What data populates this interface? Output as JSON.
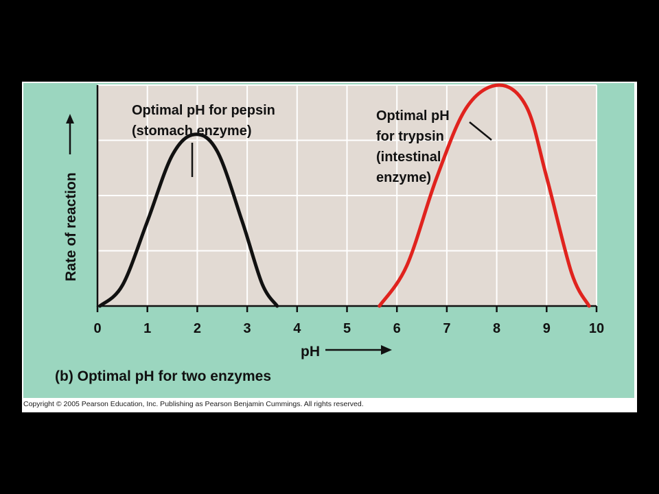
{
  "chart_data": {
    "type": "line",
    "xlabel": "pH",
    "ylabel": "Rate of reaction",
    "caption": "(b) Optimal pH for two enzymes",
    "xlim": [
      0,
      10
    ],
    "ylim": [
      0,
      3
    ],
    "xticks": [
      "0",
      "1",
      "2",
      "3",
      "4",
      "5",
      "6",
      "7",
      "8",
      "9",
      "10"
    ],
    "grid": true,
    "series": [
      {
        "color": "#111111",
        "x": [
          0.05,
          0.5,
          1.0,
          1.5,
          1.95,
          2.4,
          2.9,
          3.3,
          3.6
        ],
        "y": [
          0.0,
          0.28,
          1.15,
          2.05,
          2.33,
          2.1,
          1.15,
          0.3,
          0.0
        ]
      },
      {
        "color": "#e0231e",
        "x": [
          5.65,
          6.2,
          6.8,
          7.4,
          8.05,
          8.6,
          9.0,
          9.5,
          9.85
        ],
        "y": [
          0.0,
          0.55,
          1.75,
          2.7,
          3.0,
          2.7,
          1.75,
          0.45,
          0.0
        ]
      }
    ],
    "annotations": [
      {
        "lines": [
          "Optimal pH for pepsin",
          "(stomach enzyme)"
        ]
      },
      {
        "lines": [
          "Optimal pH",
          "for trypsin",
          "(intestinal",
          "enzyme)"
        ]
      }
    ]
  },
  "footer": {
    "copyright": "Copyright © 2005 Pearson Education, Inc. Publishing as Pearson Benjamin Cummings. All rights reserved."
  }
}
